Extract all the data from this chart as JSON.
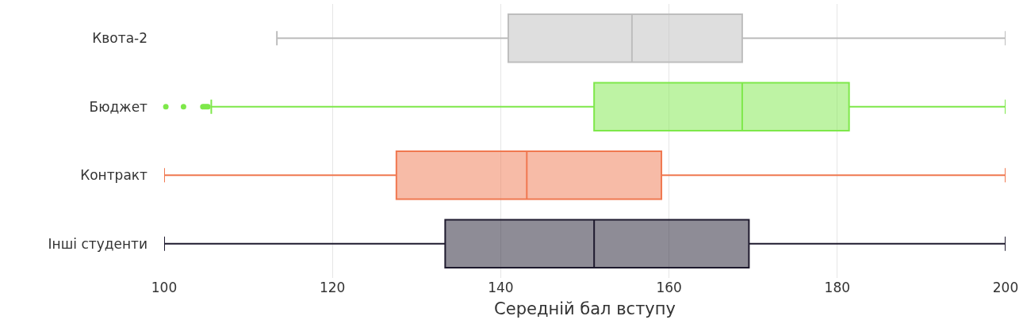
{
  "chart_data": {
    "type": "box",
    "orientation": "horizontal",
    "xlabel": "Середній бал вступу",
    "categories": [
      "Квота-2",
      "Бюджет",
      "Контракт",
      "Інші студенти"
    ],
    "boxes": [
      {
        "low": 113.4,
        "q1": 140.9,
        "median": 155.6,
        "q3": 168.7,
        "high": 200
      },
      {
        "low": 105.6,
        "q1": 151.1,
        "median": 168.7,
        "q3": 181.4,
        "high": 200,
        "outliers": [
          100.2,
          102.3,
          104.6,
          104.8,
          105.0,
          105.2
        ]
      },
      {
        "low": 100,
        "q1": 127.6,
        "median": 143.1,
        "q3": 159.1,
        "high": 200
      },
      {
        "low": 100,
        "q1": 133.4,
        "median": 151.1,
        "q3": 169.5,
        "high": 200
      }
    ],
    "colors": [
      "#bdbdbd",
      "#7ee84a",
      "#f07850",
      "#1e1a2e"
    ],
    "xlim": [
      100,
      200
    ],
    "xticks": [
      100,
      120,
      140,
      160,
      180,
      200
    ],
    "grid": "x"
  }
}
